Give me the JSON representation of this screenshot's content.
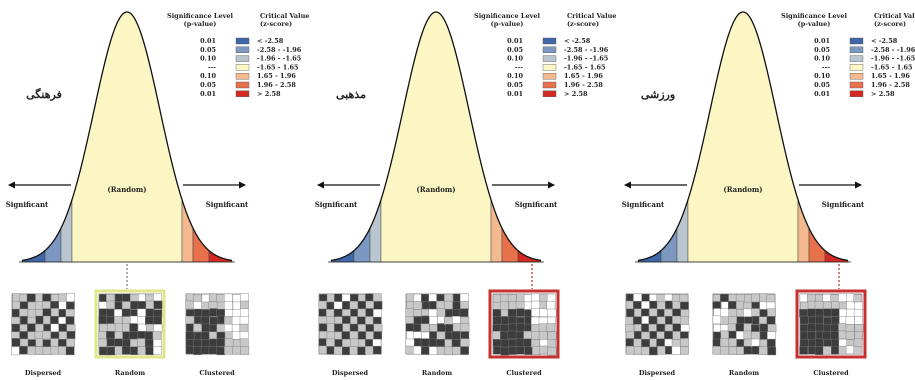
{
  "legend": {
    "header_sig_l1": "Significance Level",
    "header_sig_l2": "(p-value)",
    "header_crit_l1": "Critical Value",
    "header_crit_l2": "(z-score)",
    "rows": [
      {
        "p": "0.01",
        "z": "< -2.58",
        "color": "#3f67a8"
      },
      {
        "p": "0.05",
        "z": "-2.58 - -1.96",
        "color": "#7c97c0"
      },
      {
        "p": "0.10",
        "z": "-1.96 - -1.65",
        "color": "#b9c6cf"
      },
      {
        "p": "---",
        "z": "-1.65 - 1.65",
        "color": "#fbf6c4"
      },
      {
        "p": "0.10",
        "z": "1.65 - 1.96",
        "color": "#f4b98e"
      },
      {
        "p": "0.05",
        "z": "1.96 - 2.58",
        "color": "#e8714c"
      },
      {
        "p": "0.01",
        "z": "> 2.58",
        "color": "#d22a22"
      }
    ]
  },
  "curve_labels": {
    "random": "(Random)",
    "significant_left": "Significant",
    "significant_right": "Significant"
  },
  "map_labels": {
    "dispersed": "Dispersed",
    "random": "Random",
    "clustered": "Clustered"
  },
  "panels": [
    {
      "title": "فرهنگی",
      "selected_pattern": "random"
    },
    {
      "title": "مذهبی",
      "selected_pattern": "clustered"
    },
    {
      "title": "ورزشی",
      "selected_pattern": "clustered"
    }
  ],
  "colors": {
    "random_highlight": "#dfe78a",
    "clustered_highlight": "#c6322e",
    "cell_dark": "#3c3c3c",
    "cell_light": "#c8c8c8",
    "connector": "#b94a3e"
  }
}
